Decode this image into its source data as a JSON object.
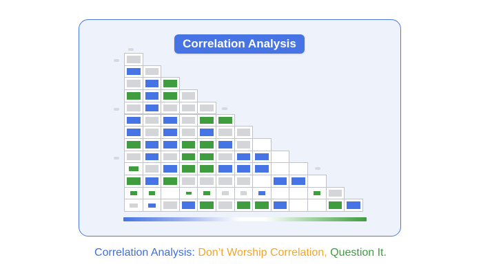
{
  "title": "Correlation Analysis",
  "caption": {
    "part1": "Correlation Analysis:",
    "part2": "Don’t Worship Correlation,",
    "part3": "Question It."
  },
  "colors": {
    "blue": "#4674e4",
    "green": "#3f9c3f",
    "gray": "#d3d5d9",
    "white": "#ffffff",
    "orange": "#f0a62a",
    "caption_blue": "#3e6fdc",
    "caption_green": "#3f9c3f"
  },
  "matrix": {
    "legend": "blue = negative, white = none, green = positive",
    "rows": [
      [
        "gray"
      ],
      [
        "blue",
        "gray"
      ],
      [
        "gray",
        "blue",
        "green"
      ],
      [
        "green",
        "blue",
        "green",
        "gray"
      ],
      [
        "gray",
        "blue",
        "gray",
        "gray",
        "gray"
      ],
      [
        "blue",
        "gray",
        "blue",
        "gray",
        "green",
        "green"
      ],
      [
        "blue",
        "gray",
        "blue",
        "gray",
        "blue",
        "gray",
        "gray"
      ],
      [
        "green",
        "blue",
        "blue",
        "green",
        "green",
        "blue",
        "gray",
        "white"
      ],
      [
        "gray",
        "blue",
        "gray",
        "green",
        "green",
        "gray",
        "blue",
        "blue",
        "white"
      ],
      [
        "green",
        "gray",
        "blue",
        "green",
        "green",
        "blue",
        "blue",
        "blue",
        "white",
        "white"
      ],
      [
        "green",
        "blue",
        "green",
        "gray",
        "gray",
        "gray",
        "gray",
        "white",
        "blue",
        "blue",
        "white"
      ],
      [
        "green",
        "green",
        "white",
        "green",
        "green",
        "gray",
        "gray",
        "blue",
        "white",
        "white",
        "green",
        "gray"
      ],
      [
        "gray",
        "blue",
        "gray",
        "blue",
        "green",
        "gray",
        "green",
        "green",
        "blue",
        "white",
        "white",
        "green",
        "blue"
      ]
    ],
    "sizes": [
      [
        1
      ],
      [
        1,
        1
      ],
      [
        1,
        1,
        1
      ],
      [
        1,
        1,
        1,
        1
      ],
      [
        1,
        1,
        1,
        1,
        1
      ],
      [
        1,
        1,
        1,
        1,
        1,
        1
      ],
      [
        1,
        1,
        1,
        1,
        1,
        1,
        1
      ],
      [
        1,
        1,
        1,
        1,
        1,
        1,
        1,
        1
      ],
      [
        1,
        1,
        1,
        1,
        1,
        1,
        1,
        1,
        1
      ],
      [
        0.7,
        1,
        1,
        1,
        1,
        1,
        1,
        1,
        1,
        1
      ],
      [
        1,
        1,
        1,
        1,
        1,
        1,
        1,
        1,
        1,
        1,
        1
      ],
      [
        0.5,
        0.5,
        1,
        0.4,
        0.5,
        0.5,
        0.5,
        0.5,
        1,
        1,
        0.5,
        1
      ],
      [
        0.6,
        0.6,
        1,
        1,
        1,
        1,
        1,
        1,
        1,
        1,
        1,
        1,
        1
      ]
    ]
  }
}
